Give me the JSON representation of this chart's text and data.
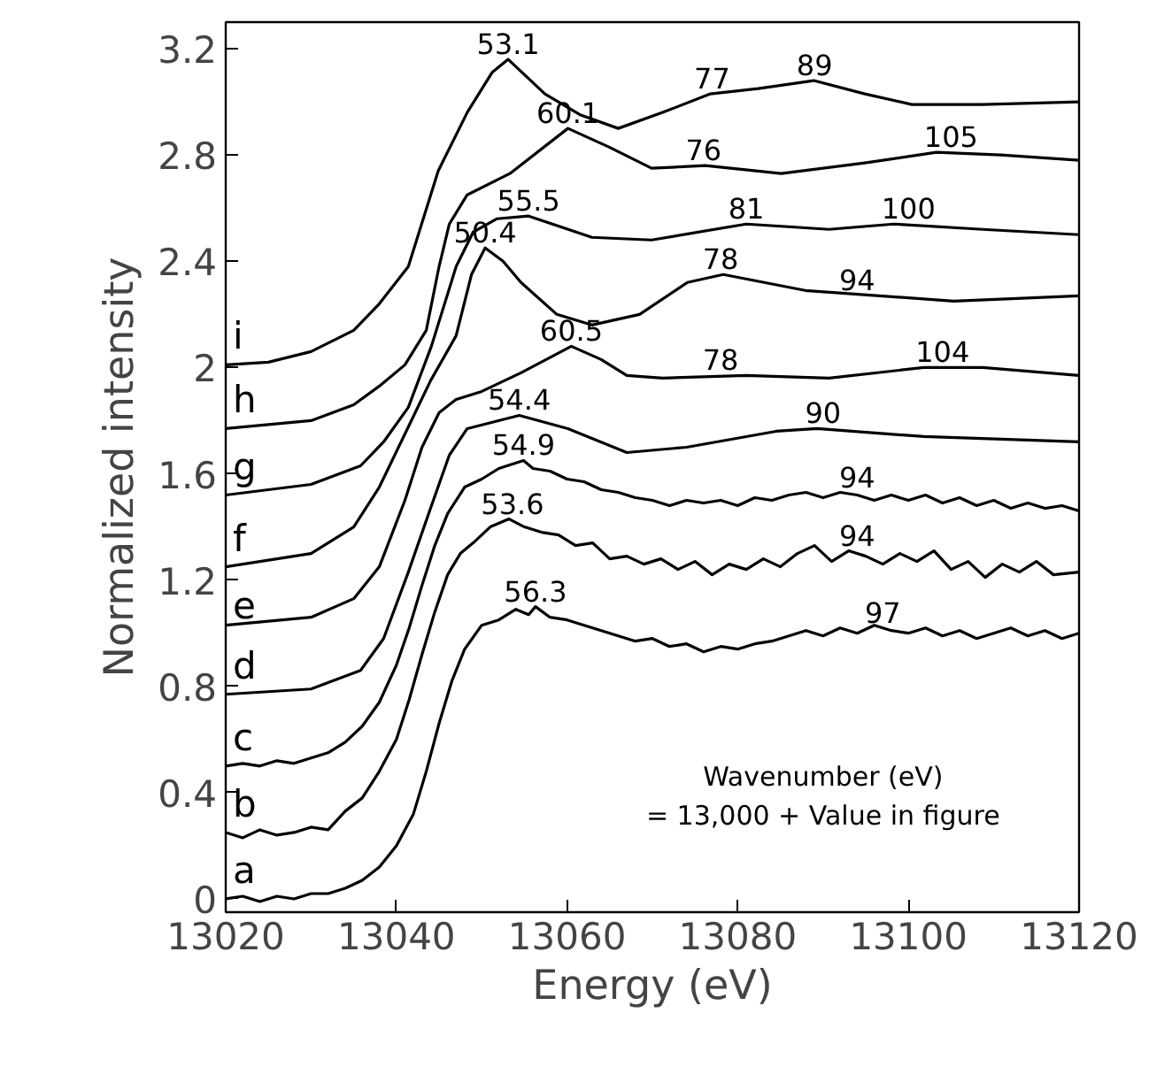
{
  "chart_data": {
    "type": "line",
    "xlabel": "Energy (eV)",
    "ylabel": "Normalized intensity",
    "xlim": [
      13020,
      13120
    ],
    "ylim": [
      -0.05,
      3.3
    ],
    "xticks": [
      13020,
      13040,
      13060,
      13080,
      13100,
      13120
    ],
    "yticks": [
      0,
      0.4,
      0.8,
      1.2,
      1.6,
      2,
      2.4,
      2.8,
      3.2
    ],
    "grid": false,
    "legend": "left",
    "marker": "none",
    "line_style": "solid",
    "series": [
      {
        "name": "a",
        "color": "#000000",
        "x": [
          13020,
          13022,
          13024,
          13026,
          13028,
          13030,
          13032,
          13034,
          13036,
          13038,
          13040,
          13042,
          13043.5,
          13045,
          13046.5,
          13048,
          13050,
          13052,
          13054,
          13055.5,
          13056.3,
          13058,
          13060,
          13062,
          13064,
          13066,
          13068,
          13070,
          13072,
          13074,
          13076,
          13078,
          13080,
          13082,
          13084,
          13086,
          13088,
          13090,
          13092,
          13094,
          13096,
          13098,
          13100,
          13102,
          13104,
          13106,
          13108,
          13110,
          13112,
          13114,
          13116,
          13118,
          13120
        ],
        "values": [
          0.0,
          0.01,
          -0.01,
          0.01,
          0.0,
          0.02,
          0.02,
          0.04,
          0.07,
          0.12,
          0.2,
          0.32,
          0.48,
          0.66,
          0.82,
          0.94,
          1.03,
          1.05,
          1.09,
          1.07,
          1.1,
          1.06,
          1.05,
          1.03,
          1.01,
          0.99,
          0.97,
          0.98,
          0.95,
          0.96,
          0.93,
          0.95,
          0.94,
          0.96,
          0.97,
          0.99,
          1.01,
          0.99,
          1.02,
          1.0,
          1.03,
          1.01,
          1.0,
          1.02,
          0.99,
          1.01,
          0.98,
          1.0,
          1.02,
          0.99,
          1.01,
          0.98,
          1.0
        ]
      },
      {
        "name": "b",
        "color": "#000000",
        "x": [
          13020,
          13022,
          13024,
          13026,
          13028,
          13030,
          13032,
          13034,
          13036,
          13038,
          13040,
          13041.5,
          13043,
          13044.5,
          13046,
          13047.5,
          13049,
          13051,
          13053.2,
          13055,
          13057,
          13059,
          13061,
          13063,
          13065,
          13067,
          13069,
          13071,
          13073,
          13075,
          13077,
          13079,
          13081,
          13083,
          13085,
          13087,
          13089,
          13091,
          13093,
          13095,
          13097,
          13099,
          13101,
          13103,
          13105,
          13107,
          13109,
          13111,
          13113,
          13115,
          13117,
          13120
        ],
        "values": [
          0.25,
          0.23,
          0.26,
          0.24,
          0.25,
          0.27,
          0.26,
          0.33,
          0.38,
          0.48,
          0.6,
          0.75,
          0.92,
          1.08,
          1.22,
          1.3,
          1.34,
          1.4,
          1.43,
          1.4,
          1.38,
          1.37,
          1.33,
          1.34,
          1.28,
          1.29,
          1.26,
          1.28,
          1.24,
          1.27,
          1.22,
          1.26,
          1.24,
          1.28,
          1.25,
          1.3,
          1.33,
          1.27,
          1.31,
          1.29,
          1.26,
          1.3,
          1.27,
          1.31,
          1.24,
          1.27,
          1.21,
          1.26,
          1.23,
          1.27,
          1.22,
          1.23
        ]
      },
      {
        "name": "c",
        "color": "#000000",
        "x": [
          13020,
          13022,
          13024,
          13026,
          13028,
          13030,
          13032,
          13034,
          13036,
          13038,
          13040,
          13041.5,
          13043,
          13044.5,
          13046,
          13048,
          13050,
          13052,
          13054.9,
          13056,
          13058,
          13060,
          13062,
          13064,
          13066,
          13068,
          13070,
          13072,
          13074,
          13076,
          13078,
          13080,
          13082,
          13084,
          13086,
          13088,
          13090,
          13092,
          13094,
          13096,
          13098,
          13100,
          13102,
          13104,
          13106,
          13108,
          13110,
          13112,
          13114,
          13116,
          13118,
          13120
        ],
        "values": [
          0.5,
          0.51,
          0.5,
          0.52,
          0.51,
          0.53,
          0.55,
          0.59,
          0.65,
          0.74,
          0.88,
          1.02,
          1.18,
          1.33,
          1.45,
          1.55,
          1.58,
          1.62,
          1.65,
          1.62,
          1.61,
          1.58,
          1.57,
          1.54,
          1.53,
          1.51,
          1.5,
          1.48,
          1.5,
          1.49,
          1.5,
          1.48,
          1.51,
          1.5,
          1.52,
          1.53,
          1.51,
          1.53,
          1.52,
          1.5,
          1.52,
          1.5,
          1.52,
          1.49,
          1.51,
          1.48,
          1.5,
          1.47,
          1.49,
          1.47,
          1.48,
          1.46
        ]
      },
      {
        "name": "d",
        "color": "#000000",
        "x": [
          13020,
          13030,
          13035.8,
          13038.5,
          13041.4,
          13044,
          13046.2,
          13048.3,
          13054.4,
          13060.1,
          13067,
          13074,
          13084.5,
          13089.3,
          13101.8,
          13120
        ],
        "values": [
          0.77,
          0.79,
          0.86,
          0.98,
          1.23,
          1.47,
          1.67,
          1.77,
          1.82,
          1.77,
          1.68,
          1.7,
          1.76,
          1.77,
          1.74,
          1.72
        ]
      },
      {
        "name": "e",
        "color": "#000000",
        "x": [
          13020,
          13030,
          13035,
          13038,
          13041,
          13043,
          13045,
          13047,
          13050,
          13054.6,
          13060.5,
          13064,
          13067,
          13071.2,
          13081,
          13090.7,
          13101.8,
          13108.7,
          13120
        ],
        "values": [
          1.03,
          1.06,
          1.13,
          1.25,
          1.5,
          1.7,
          1.83,
          1.88,
          1.91,
          1.98,
          2.08,
          2.03,
          1.97,
          1.96,
          1.97,
          1.96,
          2.0,
          2.0,
          1.97
        ]
      },
      {
        "name": "f",
        "color": "#000000",
        "x": [
          13020,
          13030,
          13035,
          13038,
          13041,
          13044,
          13047,
          13048.8,
          13050.4,
          13052.5,
          13054.6,
          13058.8,
          13062.9,
          13068.5,
          13074.1,
          13078.3,
          13087.9,
          13105.3,
          13120
        ],
        "values": [
          1.25,
          1.3,
          1.4,
          1.55,
          1.75,
          1.95,
          2.12,
          2.35,
          2.45,
          2.4,
          2.32,
          2.2,
          2.16,
          2.2,
          2.32,
          2.35,
          2.29,
          2.25,
          2.27
        ]
      },
      {
        "name": "g",
        "color": "#000000",
        "x": [
          13020,
          13030,
          13035.8,
          13038.5,
          13041.4,
          13044.1,
          13047,
          13049,
          13051.8,
          13055.5,
          13062.9,
          13069.9,
          13081,
          13090.7,
          13098.3,
          13108.7,
          13120
        ],
        "values": [
          1.52,
          1.56,
          1.63,
          1.72,
          1.85,
          2.08,
          2.38,
          2.51,
          2.56,
          2.57,
          2.49,
          2.48,
          2.54,
          2.52,
          2.54,
          2.52,
          2.5
        ]
      },
      {
        "name": "h",
        "color": "#000000",
        "x": [
          13020,
          13030,
          13035,
          13038,
          13041,
          13043.5,
          13045,
          13046.2,
          13048.3,
          13053.3,
          13060.1,
          13064.9,
          13069.9,
          13076.2,
          13085.1,
          13094.9,
          13103.3,
          13110.8,
          13120
        ],
        "values": [
          1.77,
          1.8,
          1.86,
          1.93,
          2.01,
          2.14,
          2.38,
          2.54,
          2.65,
          2.73,
          2.9,
          2.83,
          2.75,
          2.76,
          2.73,
          2.77,
          2.81,
          2.8,
          2.78
        ]
      },
      {
        "name": "i",
        "color": "#000000",
        "x": [
          13020,
          13025,
          13030,
          13035,
          13038,
          13041.4,
          13044.9,
          13048.3,
          13051.2,
          13053.1,
          13057.4,
          13061.6,
          13066,
          13071.2,
          13076.8,
          13082.4,
          13088.9,
          13094.9,
          13100.4,
          13108.7,
          13120
        ],
        "values": [
          2.01,
          2.02,
          2.06,
          2.14,
          2.24,
          2.38,
          2.74,
          2.96,
          3.11,
          3.16,
          3.03,
          2.95,
          2.9,
          2.96,
          3.03,
          3.05,
          3.08,
          3.03,
          2.99,
          2.99,
          3.0
        ]
      }
    ],
    "annotations": [
      {
        "text": "53.1",
        "x": 13053.1,
        "y": 3.16
      },
      {
        "text": "77",
        "x": 13077,
        "y": 3.03
      },
      {
        "text": "89",
        "x": 13089,
        "y": 3.08
      },
      {
        "text": "60.1",
        "x": 13060.1,
        "y": 2.9
      },
      {
        "text": "76",
        "x": 13076,
        "y": 2.76
      },
      {
        "text": "105",
        "x": 13105,
        "y": 2.81
      },
      {
        "text": "55.5",
        "x": 13055.5,
        "y": 2.57
      },
      {
        "text": "81",
        "x": 13081,
        "y": 2.54
      },
      {
        "text": "100",
        "x": 13100,
        "y": 2.54
      },
      {
        "text": "50.4",
        "x": 13050.4,
        "y": 2.45
      },
      {
        "text": "78",
        "x": 13078,
        "y": 2.35
      },
      {
        "text": "94",
        "x": 13094,
        "y": 2.27
      },
      {
        "text": "60.5",
        "x": 13060.5,
        "y": 2.08
      },
      {
        "text": "78",
        "x": 13078,
        "y": 1.97
      },
      {
        "text": "104",
        "x": 13104,
        "y": 2.0
      },
      {
        "text": "54.4",
        "x": 13054.4,
        "y": 1.82
      },
      {
        "text": "90",
        "x": 13090,
        "y": 1.77
      },
      {
        "text": "54.9",
        "x": 13054.9,
        "y": 1.65
      },
      {
        "text": "94",
        "x": 13094,
        "y": 1.53
      },
      {
        "text": "53.6",
        "x": 13053.6,
        "y": 1.43
      },
      {
        "text": "94",
        "x": 13094,
        "y": 1.31
      },
      {
        "text": "56.3",
        "x": 13056.3,
        "y": 1.1
      },
      {
        "text": "97",
        "x": 13097,
        "y": 1.02
      },
      "Wavenumber (eV)",
      "= 13,000 + Value in figure"
    ]
  }
}
